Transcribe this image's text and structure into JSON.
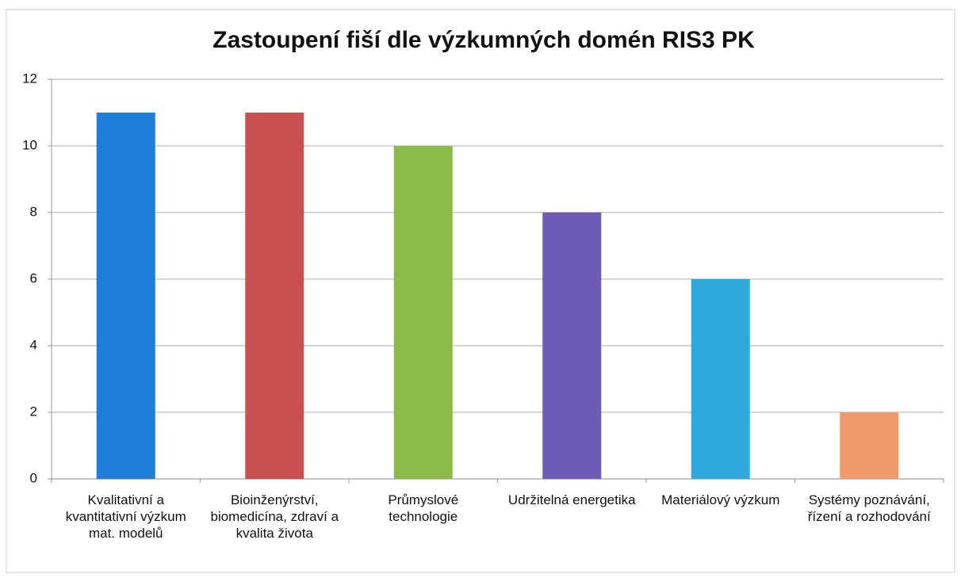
{
  "chart_data": {
    "type": "bar",
    "title": "Zastoupení fiší dle výzkumných domén RIS3 PK",
    "categories": [
      "Kvalitativní a kvantitativní výzkum mat. modelů",
      "Bioinženýrství, biomedicína, zdraví a kvalita života",
      "Průmyslové technologie",
      "Udržitelná energetika",
      "Materiálový výzkum",
      "Systémy poznávání, řízení a rozhodování"
    ],
    "values": [
      11,
      11,
      10,
      8,
      6,
      2
    ],
    "colors": [
      "#1f7fd8",
      "#c8504f",
      "#8dbb4a",
      "#6f5bb5",
      "#2ea9dd",
      "#ef9a6a"
    ],
    "ylim": [
      0,
      12
    ],
    "yticks": [
      0,
      2,
      4,
      6,
      8,
      10,
      12
    ],
    "grid": true
  }
}
